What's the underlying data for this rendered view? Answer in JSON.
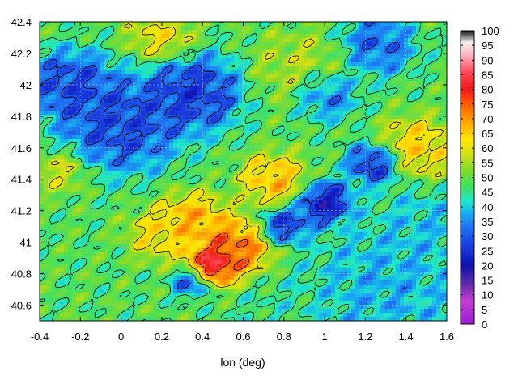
{
  "chart_data": {
    "type": "heatmap",
    "title": "",
    "xlabel": "lon (deg)",
    "ylabel": "",
    "xlim": [
      -0.4,
      1.6
    ],
    "ylim": [
      40.5,
      42.4
    ],
    "x_ticks": [
      "-0.4",
      "-0.2",
      "0",
      "0.2",
      "0.4",
      "0.6",
      "0.8",
      "1",
      "1.2",
      "1.4",
      "1.6"
    ],
    "y_ticks": [
      "40.6",
      "40.8",
      "41",
      "41.2",
      "41.4",
      "41.6",
      "41.8",
      "42",
      "42.2",
      "42.4"
    ],
    "colorbar": {
      "range": [
        0,
        100
      ],
      "ticks": [
        "0",
        "5",
        "10",
        "15",
        "20",
        "25",
        "30",
        "35",
        "40",
        "45",
        "50",
        "55",
        "60",
        "65",
        "70",
        "75",
        "80",
        "85",
        "90",
        "95",
        "100"
      ],
      "stops": [
        {
          "value": 0,
          "color": "#9a1fd6"
        },
        {
          "value": 8,
          "color": "#c23fd0"
        },
        {
          "value": 14,
          "color": "#5a2aa8"
        },
        {
          "value": 20,
          "color": "#1010b0"
        },
        {
          "value": 27,
          "color": "#1a3fe0"
        },
        {
          "value": 33,
          "color": "#1e73f2"
        },
        {
          "value": 38,
          "color": "#18b0f0"
        },
        {
          "value": 42,
          "color": "#1ee8c8"
        },
        {
          "value": 47,
          "color": "#40e060"
        },
        {
          "value": 53,
          "color": "#88dc28"
        },
        {
          "value": 58,
          "color": "#d2e014"
        },
        {
          "value": 63,
          "color": "#ffe600"
        },
        {
          "value": 68,
          "color": "#ffb000"
        },
        {
          "value": 74,
          "color": "#ff6a00"
        },
        {
          "value": 80,
          "color": "#f01818"
        },
        {
          "value": 86,
          "color": "#ff4a5a"
        },
        {
          "value": 91,
          "color": "#ffa8b8"
        },
        {
          "value": 96,
          "color": "#f2f2f2"
        },
        {
          "value": 100,
          "color": "#111111"
        }
      ]
    },
    "field_features": [
      {
        "lon": 0.45,
        "lat": 40.85,
        "value": 93,
        "spread": 0.09
      },
      {
        "lon": 0.55,
        "lat": 40.95,
        "value": 80,
        "spread": 0.15
      },
      {
        "lon": 0.35,
        "lat": 41.15,
        "value": 72,
        "spread": 0.12
      },
      {
        "lon": 0.75,
        "lat": 41.4,
        "value": 70,
        "spread": 0.12
      },
      {
        "lon": 0.2,
        "lat": 41.05,
        "value": 66,
        "spread": 0.12
      },
      {
        "lon": 1.45,
        "lat": 41.6,
        "value": 68,
        "spread": 0.14
      },
      {
        "lon": 0.2,
        "lat": 42.3,
        "value": 64,
        "spread": 0.12
      },
      {
        "lon": 0.9,
        "lat": 42.1,
        "value": 58,
        "spread": 0.18
      },
      {
        "lon": -0.3,
        "lat": 41.45,
        "value": 60,
        "spread": 0.1
      },
      {
        "lon": 0.0,
        "lat": 41.75,
        "value": 24,
        "spread": 0.22
      },
      {
        "lon": 0.35,
        "lat": 41.95,
        "value": 22,
        "spread": 0.18
      },
      {
        "lon": -0.25,
        "lat": 42.0,
        "value": 24,
        "spread": 0.16
      },
      {
        "lon": 1.0,
        "lat": 41.95,
        "value": 26,
        "spread": 0.12
      },
      {
        "lon": 1.25,
        "lat": 42.25,
        "value": 28,
        "spread": 0.14
      },
      {
        "lon": 1.0,
        "lat": 41.25,
        "value": 16,
        "spread": 0.1
      },
      {
        "lon": 1.25,
        "lat": 41.5,
        "value": 20,
        "spread": 0.1
      },
      {
        "lon": 0.8,
        "lat": 41.1,
        "value": 22,
        "spread": 0.09
      },
      {
        "lon": 0.35,
        "lat": 40.75,
        "value": 25,
        "spread": 0.07
      },
      {
        "lon": 1.3,
        "lat": 40.7,
        "value": 36,
        "spread": 0.3
      },
      {
        "lon": 0.8,
        "lat": 40.6,
        "value": 44,
        "spread": 0.2
      },
      {
        "lon": 1.5,
        "lat": 41.1,
        "value": 38,
        "spread": 0.18
      }
    ]
  }
}
